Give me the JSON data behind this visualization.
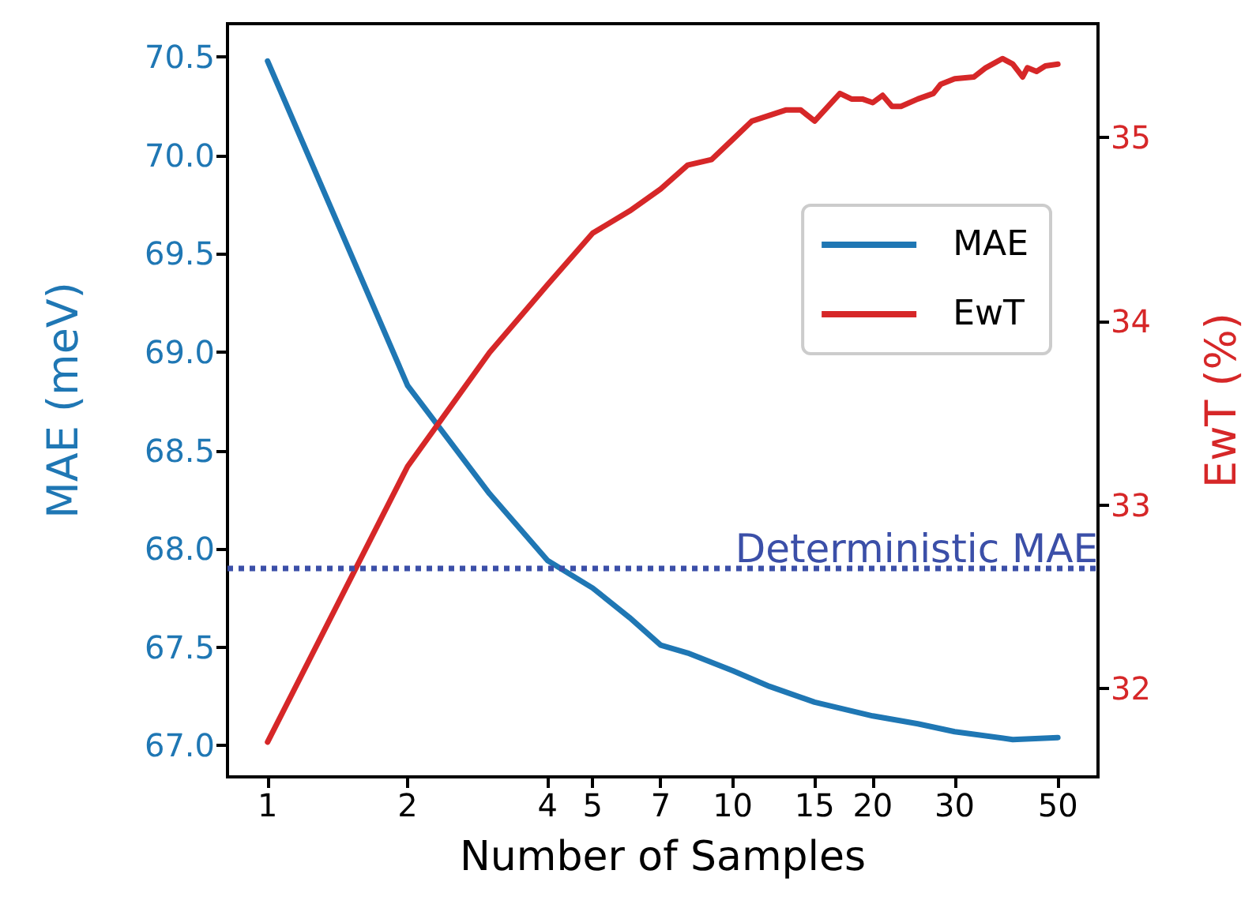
{
  "chart_data": {
    "type": "line",
    "xlabel": "Number of Samples",
    "ylabel": "MAE (meV)",
    "y2label": "EwT (%)",
    "log": "x",
    "grid": false,
    "legend": "right",
    "line_style": "solid",
    "marker": "none",
    "xlim": [
      0.82,
      61
    ],
    "xticks": [
      1,
      2,
      4,
      5,
      7,
      10,
      15,
      20,
      30,
      50
    ],
    "ylim": [
      66.84,
      70.67
    ],
    "yticks": [
      {
        "value": 67,
        "label": "67.0"
      },
      {
        "value": 67.5,
        "label": "67.5"
      },
      {
        "value": 68,
        "label": "68.0"
      },
      {
        "value": 68.5,
        "label": "68.5"
      },
      {
        "value": 69,
        "label": "69.0"
      },
      {
        "value": 69.5,
        "label": "69.5"
      },
      {
        "value": 70,
        "label": "70.0"
      },
      {
        "value": 70.5,
        "label": "70.5"
      }
    ],
    "y2lim": [
      31.52,
      35.62
    ],
    "y2ticks": [
      32,
      33,
      34,
      35
    ],
    "series": [
      {
        "name": "MAE",
        "color": "#1f77b4",
        "x": [
          1,
          2,
          3,
          4,
          5,
          6,
          7,
          8,
          10,
          12,
          15,
          20,
          25,
          30,
          40,
          50
        ],
        "values": [
          70.48,
          68.83,
          68.28,
          67.94,
          67.8,
          67.65,
          67.51,
          67.47,
          67.38,
          67.3,
          67.22,
          67.15,
          67.11,
          67.07,
          67.03,
          67.04
        ]
      },
      {
        "name": "EwT",
        "color": "#d62728",
        "axis": "y2",
        "x": [
          1,
          2,
          3,
          4,
          5,
          6,
          7,
          8,
          9,
          10,
          11,
          13,
          14,
          15,
          17,
          18,
          19,
          20,
          21,
          22,
          23,
          25,
          27,
          28,
          30,
          33,
          35,
          38,
          40,
          42,
          43,
          45,
          47,
          50
        ],
        "values": [
          31.71,
          33.21,
          33.83,
          34.2,
          34.48,
          34.6,
          34.72,
          34.85,
          34.88,
          34.99,
          35.09,
          35.15,
          35.15,
          35.09,
          35.24,
          35.21,
          35.21,
          35.19,
          35.23,
          35.17,
          35.17,
          35.21,
          35.24,
          35.29,
          35.32,
          35.33,
          35.38,
          35.43,
          35.4,
          35.33,
          35.38,
          35.36,
          35.39,
          35.4
        ]
      }
    ],
    "ref_lines": [
      {
        "axis": "y",
        "value": 67.9,
        "label": "Deterministic MAE",
        "color": "#3b4fa8",
        "line_style": "dotted"
      }
    ]
  }
}
